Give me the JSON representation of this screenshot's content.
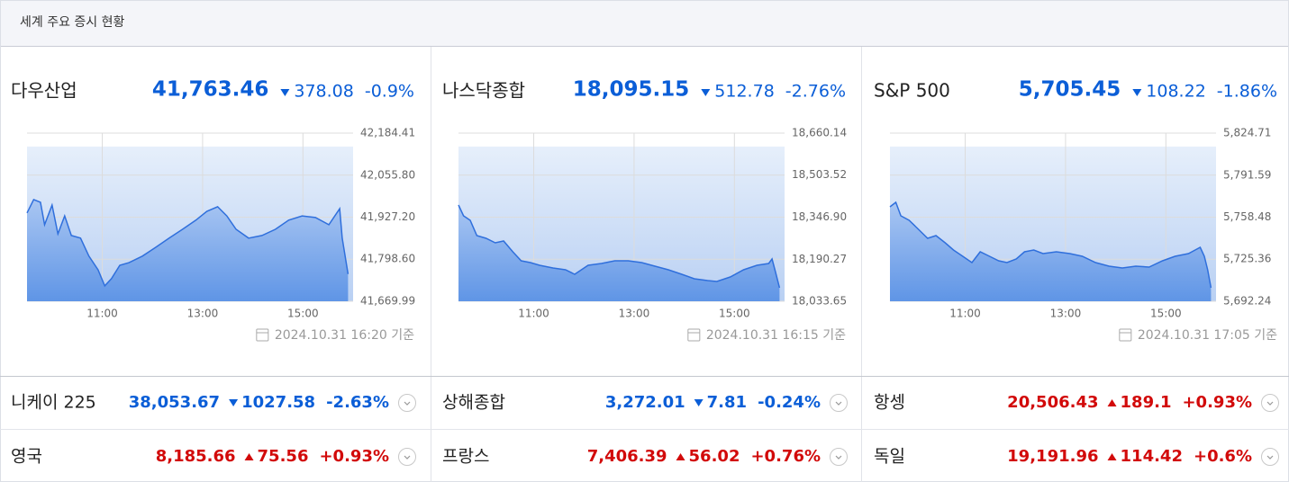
{
  "header": {
    "title": "세계 주요 증시 현황"
  },
  "panels": [
    {
      "name": "다우산업",
      "value": "41,763.46",
      "change": "378.08",
      "change_pct": "-0.9%",
      "direction": "down",
      "timestamp": "2024.10.31 16:20 기준"
    },
    {
      "name": "나스닥종합",
      "value": "18,095.15",
      "change": "512.78",
      "change_pct": "-2.76%",
      "direction": "down",
      "timestamp": "2024.10.31 16:15 기준"
    },
    {
      "name": "S&P 500",
      "value": "5,705.45",
      "change": "108.22",
      "change_pct": "-1.86%",
      "direction": "down",
      "timestamp": "2024.10.31 17:05 기준"
    }
  ],
  "chart_data": [
    {
      "type": "area",
      "color": "#2f6fdc",
      "grid": true,
      "x": [
        570,
        578,
        586,
        591,
        600,
        607,
        615,
        623,
        634,
        644,
        655,
        663,
        671,
        681,
        692,
        708,
        724,
        740,
        756,
        772,
        785,
        798,
        809,
        820,
        835,
        851,
        867,
        883,
        899,
        915,
        931,
        944,
        947,
        954
      ],
      "values": [
        41940,
        41981,
        41973,
        41904,
        41964,
        41876,
        41931,
        41871,
        41863,
        41808,
        41766,
        41717,
        41739,
        41780,
        41788,
        41808,
        41835,
        41863,
        41890,
        41918,
        41945,
        41959,
        41931,
        41890,
        41863,
        41871,
        41890,
        41918,
        41931,
        41926,
        41904,
        41953,
        41863,
        41753
      ],
      "xlim": [
        570,
        960
      ],
      "xticks": [
        {
          "value": 660,
          "label": "11:00"
        },
        {
          "value": 780,
          "label": "13:00"
        },
        {
          "value": 900,
          "label": "15:00"
        }
      ],
      "ylim": [
        41669.99,
        42184.41
      ],
      "yticks": [
        {
          "value": 41669.99,
          "label": "41,669.99"
        },
        {
          "value": 41798.6,
          "label": "41,798.60"
        },
        {
          "value": 41927.2,
          "label": "41,927.20"
        },
        {
          "value": 42055.8,
          "label": "42,055.80"
        },
        {
          "value": 42184.41,
          "label": "42,184.41"
        }
      ]
    },
    {
      "type": "area",
      "color": "#2f6fdc",
      "grid": true,
      "x": [
        570,
        576,
        584,
        592,
        603,
        614,
        624,
        635,
        645,
        656,
        667,
        683,
        698,
        709,
        725,
        741,
        757,
        773,
        789,
        805,
        821,
        837,
        852,
        868,
        879,
        895,
        911,
        927,
        941,
        945,
        949,
        954
      ],
      "values": [
        18392.1,
        18351.9,
        18335.2,
        18278.2,
        18268.2,
        18251.4,
        18258.1,
        18217.9,
        18184.4,
        18177.7,
        18167.7,
        18157.6,
        18150.9,
        18134.2,
        18167.7,
        18174.4,
        18184.4,
        18184.4,
        18177.7,
        18164.3,
        18150.9,
        18134.2,
        18117.4,
        18110.7,
        18107.4,
        18124.1,
        18150.9,
        18167.7,
        18174.4,
        18191.1,
        18144.2,
        18083.9
      ],
      "xlim": [
        570,
        960
      ],
      "xticks": [
        {
          "value": 660,
          "label": "11:00"
        },
        {
          "value": 780,
          "label": "13:00"
        },
        {
          "value": 900,
          "label": "15:00"
        }
      ],
      "ylim": [
        18033.65,
        18660.14
      ],
      "yticks": [
        {
          "value": 18033.65,
          "label": "18,033.65"
        },
        {
          "value": 18190.27,
          "label": "18,190.27"
        },
        {
          "value": 18346.9,
          "label": "18,346.90"
        },
        {
          "value": 18503.52,
          "label": "18,503.52"
        },
        {
          "value": 18660.14,
          "label": "18,660.14"
        }
      ]
    },
    {
      "type": "area",
      "color": "#2f6fdc",
      "grid": true,
      "x": [
        570,
        577,
        583,
        593,
        604,
        615,
        625,
        636,
        646,
        657,
        668,
        678,
        689,
        700,
        710,
        721,
        731,
        742,
        753,
        769,
        785,
        800,
        816,
        832,
        848,
        864,
        880,
        896,
        911,
        927,
        941,
        946,
        950,
        954
      ],
      "values": [
        5766.62,
        5770.17,
        5759.54,
        5756.0,
        5748.91,
        5741.83,
        5743.95,
        5738.29,
        5732.62,
        5727.66,
        5722.7,
        5731.2,
        5727.66,
        5724.12,
        5722.7,
        5725.54,
        5731.2,
        5732.62,
        5729.79,
        5731.2,
        5729.79,
        5727.66,
        5722.7,
        5719.87,
        5718.45,
        5719.87,
        5719.16,
        5724.12,
        5727.66,
        5729.79,
        5734.75,
        5727.66,
        5717.03,
        5702.86
      ],
      "xlim": [
        570,
        960
      ],
      "xticks": [
        {
          "value": 660,
          "label": "11:00"
        },
        {
          "value": 780,
          "label": "13:00"
        },
        {
          "value": 900,
          "label": "15:00"
        }
      ],
      "ylim": [
        5692.24,
        5824.71
      ],
      "yticks": [
        {
          "value": 5692.24,
          "label": "5,692.24"
        },
        {
          "value": 5725.36,
          "label": "5,725.36"
        },
        {
          "value": 5758.48,
          "label": "5,758.48"
        },
        {
          "value": 5791.59,
          "label": "5,791.59"
        },
        {
          "value": 5824.71,
          "label": "5,824.71"
        }
      ]
    }
  ],
  "rows": [
    [
      {
        "name": "니케이 225",
        "value": "38,053.67",
        "change": "1027.58",
        "change_pct": "-2.63%",
        "direction": "down"
      },
      {
        "name": "상해종합",
        "value": "3,272.01",
        "change": "7.81",
        "change_pct": "-0.24%",
        "direction": "down"
      },
      {
        "name": "항셍",
        "value": "20,506.43",
        "change": "189.1",
        "change_pct": "+0.93%",
        "direction": "up"
      }
    ],
    [
      {
        "name": "영국",
        "value": "8,185.66",
        "change": "75.56",
        "change_pct": "+0.93%",
        "direction": "up"
      },
      {
        "name": "프랑스",
        "value": "7,406.39",
        "change": "56.02",
        "change_pct": "+0.76%",
        "direction": "up"
      },
      {
        "name": "독일",
        "value": "19,191.96",
        "change": "114.42",
        "change_pct": "+0.6%",
        "direction": "up"
      }
    ]
  ]
}
